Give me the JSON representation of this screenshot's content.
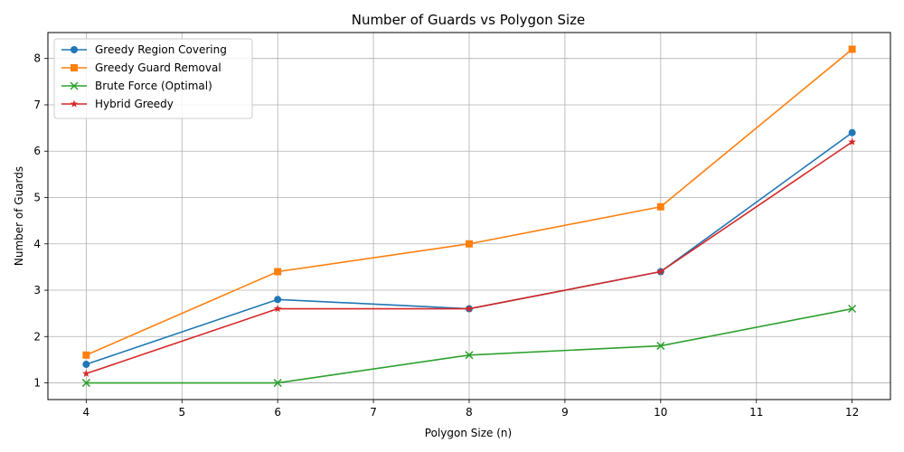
{
  "chart_data": {
    "type": "line",
    "title": "Number of Guards vs Polygon Size",
    "xlabel": "Polygon Size (n)",
    "ylabel": "Number of Guards",
    "x": [
      4,
      6,
      8,
      10,
      12
    ],
    "xlim": [
      3.6,
      12.4
    ],
    "ylim": [
      0.64,
      8.56
    ],
    "xticks": [
      4,
      5,
      6,
      7,
      8,
      9,
      10,
      11,
      12
    ],
    "yticks": [
      1,
      2,
      3,
      4,
      5,
      6,
      7,
      8
    ],
    "grid": true,
    "legend_position": "top-left",
    "series": [
      {
        "name": "Greedy Region Covering",
        "values": [
          1.4,
          2.8,
          2.6,
          3.4,
          6.4
        ],
        "color": "#1f77b4",
        "marker": "circle"
      },
      {
        "name": "Greedy Guard Removal",
        "values": [
          1.6,
          3.4,
          4.0,
          4.8,
          8.2
        ],
        "color": "#ff7f0e",
        "marker": "square"
      },
      {
        "name": "Brute Force (Optimal)",
        "values": [
          1.0,
          1.0,
          1.6,
          1.8,
          2.6
        ],
        "color": "#2ca02c",
        "marker": "x"
      },
      {
        "name": "Hybrid Greedy",
        "values": [
          1.2,
          2.6,
          2.6,
          3.4,
          6.2
        ],
        "color": "#d62728",
        "marker": "star"
      }
    ]
  }
}
